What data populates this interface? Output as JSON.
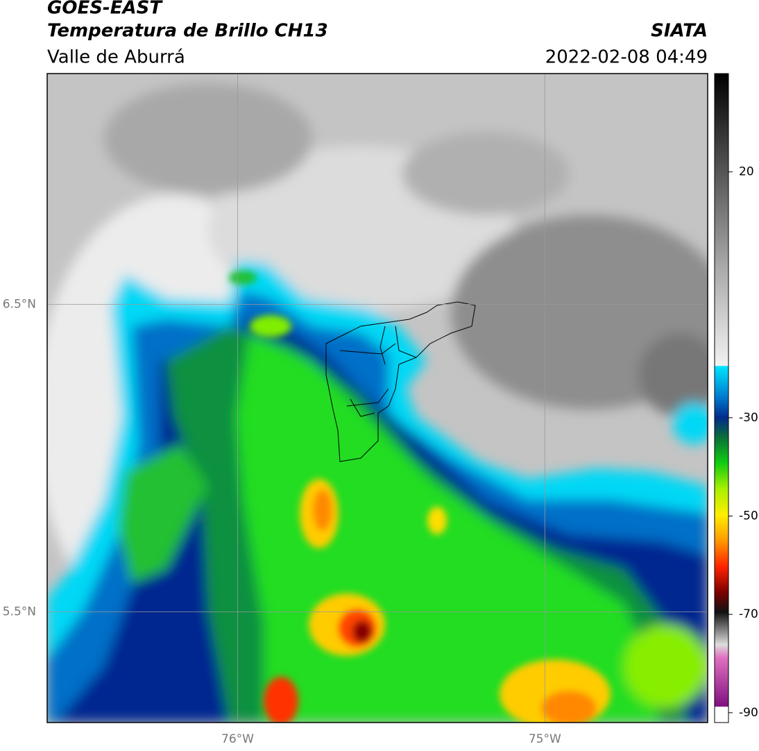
{
  "header": {
    "title": "GOES-EAST",
    "subtitle": "Temperatura de Brillo CH13",
    "region": "Valle de Aburrá",
    "source": "SIATA",
    "datetime": "2022-02-08 04:49"
  },
  "map": {
    "xlim": [
      -76.62,
      -74.47
    ],
    "ylim": [
      5.14,
      7.25
    ],
    "xticks": [
      {
        "value": -76,
        "label": "76°W"
      },
      {
        "value": -75,
        "label": "75°W"
      }
    ],
    "yticks": [
      {
        "value": 6.5,
        "label": "6.5°N"
      },
      {
        "value": 5.5,
        "label": "5.5°N"
      }
    ]
  },
  "colorbar": {
    "lim": [
      -92,
      40
    ],
    "ticks": [
      20,
      -30,
      -50,
      -70,
      -90
    ]
  }
}
